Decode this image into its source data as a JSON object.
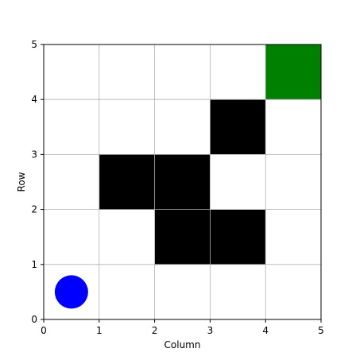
{
  "grid": {
    "cols": 5,
    "rows": 5,
    "x_ticks": [
      "0",
      "1",
      "2",
      "3",
      "4",
      "5"
    ],
    "y_ticks": [
      "0",
      "1",
      "2",
      "3",
      "4",
      "5"
    ],
    "xlabel": "Column",
    "ylabel": "Row",
    "grid_color": "#b0b0b0",
    "obstacle_color": "#000000",
    "goal_color": "#008000",
    "agent_color": "#0000ff",
    "obstacles": [
      {
        "col": 1,
        "row": 2
      },
      {
        "col": 2,
        "row": 2
      },
      {
        "col": 2,
        "row": 1
      },
      {
        "col": 3,
        "row": 1
      },
      {
        "col": 3,
        "row": 3
      }
    ],
    "goal": {
      "col": 4,
      "row": 4
    },
    "agent": {
      "col": 0,
      "row": 0
    }
  }
}
